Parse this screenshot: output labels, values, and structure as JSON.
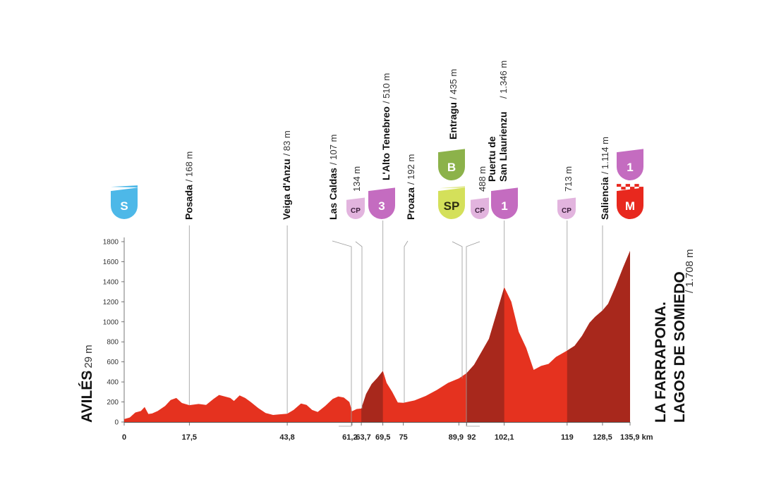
{
  "chart_data": {
    "type": "area",
    "x_unit": "km",
    "y_ticks": [
      "0",
      "200",
      "400",
      "600",
      "800",
      "1000",
      "1200",
      "1400",
      "1600",
      "1800"
    ],
    "ylim": [
      0,
      1800
    ],
    "xlim": [
      0,
      135.9
    ],
    "start": {
      "name": "AVILÉS",
      "alt": "/ 29 m"
    },
    "finish": {
      "name_line1": "LA FARRAPONA.",
      "name_line2": "LAGOS DE SOMIEDO",
      "alt": "/ 1.708 m"
    },
    "x_labels": [
      {
        "km": 0,
        "label": "0"
      },
      {
        "km": 17.5,
        "label": "17,5"
      },
      {
        "km": 43.8,
        "label": "43,8"
      },
      {
        "km": 61.2,
        "label": "61,2"
      },
      {
        "km": 63.7,
        "label": "63,7"
      },
      {
        "km": 69.5,
        "label": "69,5"
      },
      {
        "km": 75,
        "label": "75"
      },
      {
        "km": 89.9,
        "label": "89,9"
      },
      {
        "km": 92,
        "label": "92"
      },
      {
        "km": 102.1,
        "label": "102,1"
      },
      {
        "km": 119,
        "label": "119"
      },
      {
        "km": 128.5,
        "label": "128,5"
      },
      {
        "km": 135.9,
        "label": "135,9 km"
      }
    ],
    "profile": [
      [
        0,
        29
      ],
      [
        1.5,
        45
      ],
      [
        3,
        95
      ],
      [
        4.5,
        110
      ],
      [
        5.5,
        150
      ],
      [
        6.5,
        80
      ],
      [
        7.5,
        85
      ],
      [
        9,
        110
      ],
      [
        11,
        160
      ],
      [
        12.5,
        220
      ],
      [
        14,
        240
      ],
      [
        15.5,
        190
      ],
      [
        17.5,
        168
      ],
      [
        20,
        180
      ],
      [
        22,
        170
      ],
      [
        24,
        230
      ],
      [
        25.5,
        270
      ],
      [
        27,
        255
      ],
      [
        28.5,
        240
      ],
      [
        29.5,
        210
      ],
      [
        31,
        265
      ],
      [
        32.5,
        240
      ],
      [
        34,
        200
      ],
      [
        36,
        140
      ],
      [
        38,
        90
      ],
      [
        40,
        70
      ],
      [
        41.5,
        75
      ],
      [
        43.8,
        83
      ],
      [
        45.5,
        120
      ],
      [
        47.5,
        185
      ],
      [
        49,
        170
      ],
      [
        50.5,
        120
      ],
      [
        52,
        100
      ],
      [
        54,
        160
      ],
      [
        56,
        230
      ],
      [
        57.5,
        255
      ],
      [
        59,
        245
      ],
      [
        60.5,
        200
      ],
      [
        61.2,
        107
      ],
      [
        62.5,
        130
      ],
      [
        63.7,
        134
      ],
      [
        65,
        280
      ],
      [
        66.5,
        380
      ],
      [
        68,
        440
      ],
      [
        69.5,
        510
      ],
      [
        70.5,
        390
      ],
      [
        72,
        300
      ],
      [
        73.5,
        195
      ],
      [
        75,
        192
      ],
      [
        78,
        215
      ],
      [
        81,
        260
      ],
      [
        84,
        320
      ],
      [
        87,
        390
      ],
      [
        89.9,
        435
      ],
      [
        92,
        488
      ],
      [
        94,
        570
      ],
      [
        96,
        700
      ],
      [
        98,
        830
      ],
      [
        100,
        1080
      ],
      [
        102.1,
        1346
      ],
      [
        104,
        1200
      ],
      [
        106,
        900
      ],
      [
        108,
        740
      ],
      [
        110,
        520
      ],
      [
        112,
        560
      ],
      [
        114,
        580
      ],
      [
        116,
        650
      ],
      [
        119,
        713
      ],
      [
        121,
        760
      ],
      [
        123,
        860
      ],
      [
        125,
        990
      ],
      [
        126.5,
        1050
      ],
      [
        128.5,
        1114
      ],
      [
        130,
        1180
      ],
      [
        132,
        1350
      ],
      [
        134,
        1540
      ],
      [
        135.9,
        1708
      ]
    ],
    "dark_segments": [
      [
        63.7,
        69.5
      ],
      [
        92,
        102.1
      ],
      [
        119,
        135.9
      ]
    ],
    "waypoints": [
      {
        "km": 17.5,
        "name": "Posada",
        "alt": "/ 168 m"
      },
      {
        "km": 43.8,
        "name": "Veiga d'Anzu",
        "alt": "/ 83 m"
      },
      {
        "km": 61.2,
        "name": "Las Caldas",
        "alt": "/ 107 m"
      },
      {
        "km": 63.7,
        "name": "",
        "alt": "134 m"
      },
      {
        "km": 69.5,
        "name": "L'Alto Tenebreo",
        "alt": "/ 510 m"
      },
      {
        "km": 75,
        "name": "Proaza",
        "alt": "/ 192 m"
      },
      {
        "km": 89.9,
        "name": "Entragu",
        "alt": "/ 435 m"
      },
      {
        "km": 92,
        "name": "",
        "alt": "488 m"
      },
      {
        "km": 102.1,
        "name_line1": "Puertu de",
        "name_line2": "San Llaurienzu",
        "alt": "/ 1.346 m"
      },
      {
        "km": 119,
        "name": "",
        "alt": "713 m"
      },
      {
        "km": 128.5,
        "name": "Saliencia",
        "alt": "/ 1.114 m"
      }
    ],
    "badges": [
      {
        "km": 0,
        "kind": "start",
        "label": "S",
        "color": "#4db8e8"
      },
      {
        "km": 63.7,
        "kind": "cp",
        "label": "CP",
        "color": "#e2b4de"
      },
      {
        "km": 69.5,
        "kind": "climb",
        "label": "3",
        "color": "#c46cc0"
      },
      {
        "km": 89.9,
        "kind": "sprint",
        "label": "SP",
        "color": "#d4e05a"
      },
      {
        "km": 89.9,
        "kind": "bonus",
        "label": "B",
        "color": "#8cb24a"
      },
      {
        "km": 92,
        "kind": "cp",
        "label": "CP",
        "color": "#e2b4de"
      },
      {
        "km": 102.1,
        "kind": "climb",
        "label": "1",
        "color": "#c46cc0"
      },
      {
        "km": 119,
        "kind": "cp",
        "label": "CP",
        "color": "#e2b4de"
      },
      {
        "km": 135.9,
        "kind": "finish",
        "label": "M",
        "color": "#e8281e"
      },
      {
        "km": 135.9,
        "kind": "climb",
        "label": "1",
        "color": "#c46cc0"
      }
    ],
    "colors": {
      "profile": "#e5321f",
      "profile_dark": "#a8281c",
      "axis": "#555555"
    }
  }
}
